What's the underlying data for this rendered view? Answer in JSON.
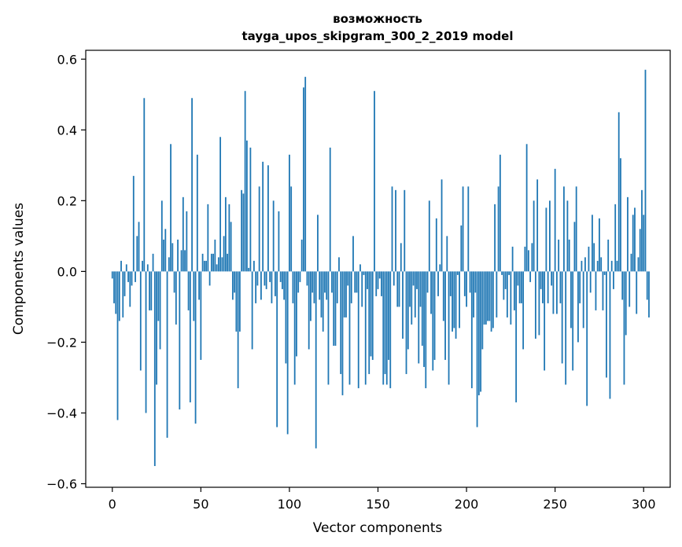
{
  "chart_data": {
    "type": "bar",
    "title_line1": "возможность",
    "title_line2": "tayga_upos_skipgram_300_2_2019 model",
    "xlabel": "Vector components",
    "ylabel": "Components values",
    "xlim": [
      -15,
      315
    ],
    "ylim": [
      -0.61,
      0.625
    ],
    "x_ticks": [
      0,
      50,
      100,
      150,
      200,
      250,
      300
    ],
    "x_tick_labels": [
      "0",
      "50",
      "100",
      "150",
      "200",
      "250",
      "300"
    ],
    "y_ticks": [
      -0.6,
      -0.4,
      -0.2,
      0.0,
      0.2,
      0.4,
      0.6
    ],
    "y_tick_labels": [
      "−0.6",
      "−0.4",
      "−0.2",
      "0.0",
      "0.2",
      "0.4",
      "0.6"
    ],
    "bar_color": "#1f77b4",
    "values": [
      -0.02,
      -0.09,
      -0.12,
      -0.42,
      -0.14,
      0.03,
      -0.13,
      -0.07,
      0.02,
      -0.03,
      -0.1,
      -0.04,
      0.27,
      -0.03,
      0.1,
      0.14,
      -0.28,
      0.03,
      0.49,
      -0.4,
      0.02,
      -0.11,
      -0.11,
      0.05,
      -0.55,
      -0.32,
      -0.14,
      -0.22,
      0.2,
      0.09,
      0.12,
      -0.47,
      0.04,
      0.36,
      0.08,
      -0.06,
      -0.15,
      0.09,
      -0.39,
      0.06,
      0.21,
      0.06,
      0.17,
      -0.11,
      -0.37,
      0.49,
      -0.14,
      -0.43,
      0.33,
      -0.08,
      -0.25,
      0.05,
      0.03,
      0.03,
      0.19,
      -0.04,
      0.05,
      0.05,
      0.09,
      0.02,
      0.04,
      0.38,
      0.04,
      0.1,
      0.21,
      0.05,
      0.19,
      0.14,
      -0.08,
      -0.06,
      -0.17,
      -0.33,
      -0.17,
      0.23,
      0.22,
      0.51,
      0.37,
      0.01,
      0.35,
      -0.22,
      0.03,
      -0.09,
      -0.04,
      0.24,
      -0.08,
      0.31,
      -0.04,
      -0.05,
      0.3,
      -0.03,
      -0.09,
      0.2,
      -0.07,
      -0.44,
      0.17,
      -0.03,
      -0.05,
      -0.08,
      -0.26,
      -0.46,
      0.33,
      0.24,
      -0.09,
      -0.32,
      -0.24,
      -0.06,
      -0.03,
      0.09,
      0.52,
      0.55,
      -0.04,
      -0.22,
      -0.14,
      -0.06,
      -0.09,
      -0.5,
      0.16,
      -0.08,
      -0.13,
      -0.17,
      -0.06,
      -0.08,
      -0.32,
      0.35,
      -0.06,
      -0.21,
      -0.21,
      -0.09,
      0.04,
      -0.29,
      -0.35,
      -0.13,
      -0.13,
      -0.04,
      -0.32,
      -0.09,
      0.1,
      -0.06,
      -0.06,
      -0.33,
      0.02,
      -0.1,
      -0.01,
      -0.32,
      -0.05,
      -0.29,
      -0.24,
      -0.25,
      0.51,
      -0.07,
      -0.05,
      -0.02,
      -0.07,
      -0.32,
      -0.29,
      -0.32,
      -0.25,
      -0.33,
      0.24,
      -0.04,
      0.23,
      -0.1,
      -0.1,
      0.08,
      -0.19,
      0.23,
      -0.29,
      -0.22,
      -0.1,
      -0.15,
      -0.04,
      -0.13,
      -0.05,
      -0.26,
      -0.1,
      -0.21,
      -0.27,
      -0.33,
      -0.06,
      0.2,
      -0.12,
      -0.28,
      -0.25,
      0.15,
      -0.07,
      0.02,
      0.26,
      -0.14,
      -0.25,
      0.1,
      -0.32,
      -0.07,
      -0.17,
      -0.16,
      -0.19,
      -0.01,
      -0.16,
      0.13,
      0.24,
      -0.07,
      -0.1,
      0.24,
      -0.06,
      -0.33,
      -0.13,
      -0.06,
      -0.44,
      -0.35,
      -0.34,
      -0.22,
      -0.15,
      -0.15,
      -0.14,
      -0.14,
      -0.17,
      -0.16,
      0.19,
      -0.13,
      0.24,
      0.33,
      -0.01,
      -0.08,
      -0.05,
      -0.13,
      -0.01,
      -0.15,
      0.07,
      -0.11,
      -0.37,
      -0.04,
      -0.09,
      -0.09,
      -0.22,
      0.07,
      0.36,
      0.06,
      -0.03,
      0.08,
      0.2,
      -0.19,
      0.26,
      -0.18,
      -0.05,
      -0.09,
      -0.28,
      0.18,
      -0.09,
      0.2,
      -0.04,
      -0.12,
      0.29,
      -0.12,
      0.09,
      -0.09,
      -0.26,
      0.24,
      -0.32,
      0.2,
      0.09,
      -0.16,
      -0.28,
      0.14,
      0.24,
      -0.2,
      -0.09,
      0.03,
      -0.16,
      0.04,
      -0.38,
      0.07,
      -0.06,
      0.16,
      0.08,
      -0.11,
      0.03,
      0.15,
      0.04,
      -0.11,
      -0.01,
      -0.3,
      0.09,
      -0.36,
      0.03,
      -0.05,
      0.19,
      0.03,
      0.45,
      0.32,
      -0.08,
      -0.32,
      -0.18,
      0.21,
      -0.1,
      0.05,
      0.16,
      0.18,
      -0.12,
      0.04,
      0.12,
      0.23,
      0.16,
      0.57,
      -0.08,
      -0.13
    ]
  }
}
